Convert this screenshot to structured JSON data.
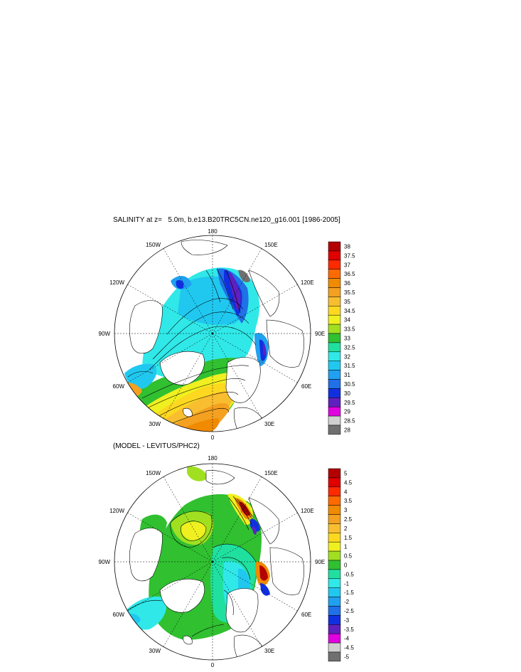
{
  "panels": [
    {
      "title": "SALINITY at z=   5.0m, b.e13.B20TRC5CN.ne120_g16.001 [1986-2005]",
      "longitude_labels": [
        "180",
        "150E",
        "120E",
        "90E",
        "60E",
        "30E",
        "0",
        "30W",
        "60W",
        "90W",
        "120W",
        "150W"
      ],
      "colorbar": {
        "labels": [
          "38",
          "37.5",
          "37",
          "36.5",
          "36",
          "35.5",
          "35",
          "34.5",
          "34",
          "33.5",
          "33",
          "32.5",
          "32",
          "31.5",
          "31",
          "30.5",
          "30",
          "29.5",
          "29",
          "28.5",
          "28"
        ],
        "colors": [
          "#b30000",
          "#e00000",
          "#ff2a00",
          "#ff6a00",
          "#f08a00",
          "#f4a020",
          "#f8be30",
          "#fcd820",
          "#f0f020",
          "#a0e020",
          "#30c030",
          "#20e0a0",
          "#30e8e8",
          "#20c8f0",
          "#20a0f0",
          "#2070e8",
          "#1030e0",
          "#6020c0",
          "#e000e0",
          "#d0d0d0",
          "#707070"
        ]
      }
    },
    {
      "title": "(MODEL - LEVITUS/PHC2)",
      "longitude_labels": [
        "180",
        "150E",
        "120E",
        "90E",
        "60E",
        "30E",
        "0",
        "30W",
        "60W",
        "90W",
        "120W",
        "150W"
      ],
      "colorbar": {
        "labels": [
          "5",
          "4.5",
          "4",
          "3.5",
          "3",
          "2.5",
          "2",
          "1.5",
          "1",
          "0.5",
          "0",
          "-0.5",
          "-1",
          "-1.5",
          "-2",
          "-2.5",
          "-3",
          "-3.5",
          "-4",
          "-4.5",
          "-5"
        ],
        "colors": [
          "#b30000",
          "#e00000",
          "#ff2a00",
          "#ff6a00",
          "#f08a00",
          "#f4a020",
          "#f8be30",
          "#fcd820",
          "#f0f020",
          "#a0e020",
          "#30c030",
          "#20e0a0",
          "#30e8e8",
          "#20c8f0",
          "#20a0f0",
          "#2070e8",
          "#1030e0",
          "#6020c0",
          "#e000e0",
          "#d0d0d0",
          "#707070"
        ]
      }
    }
  ]
}
